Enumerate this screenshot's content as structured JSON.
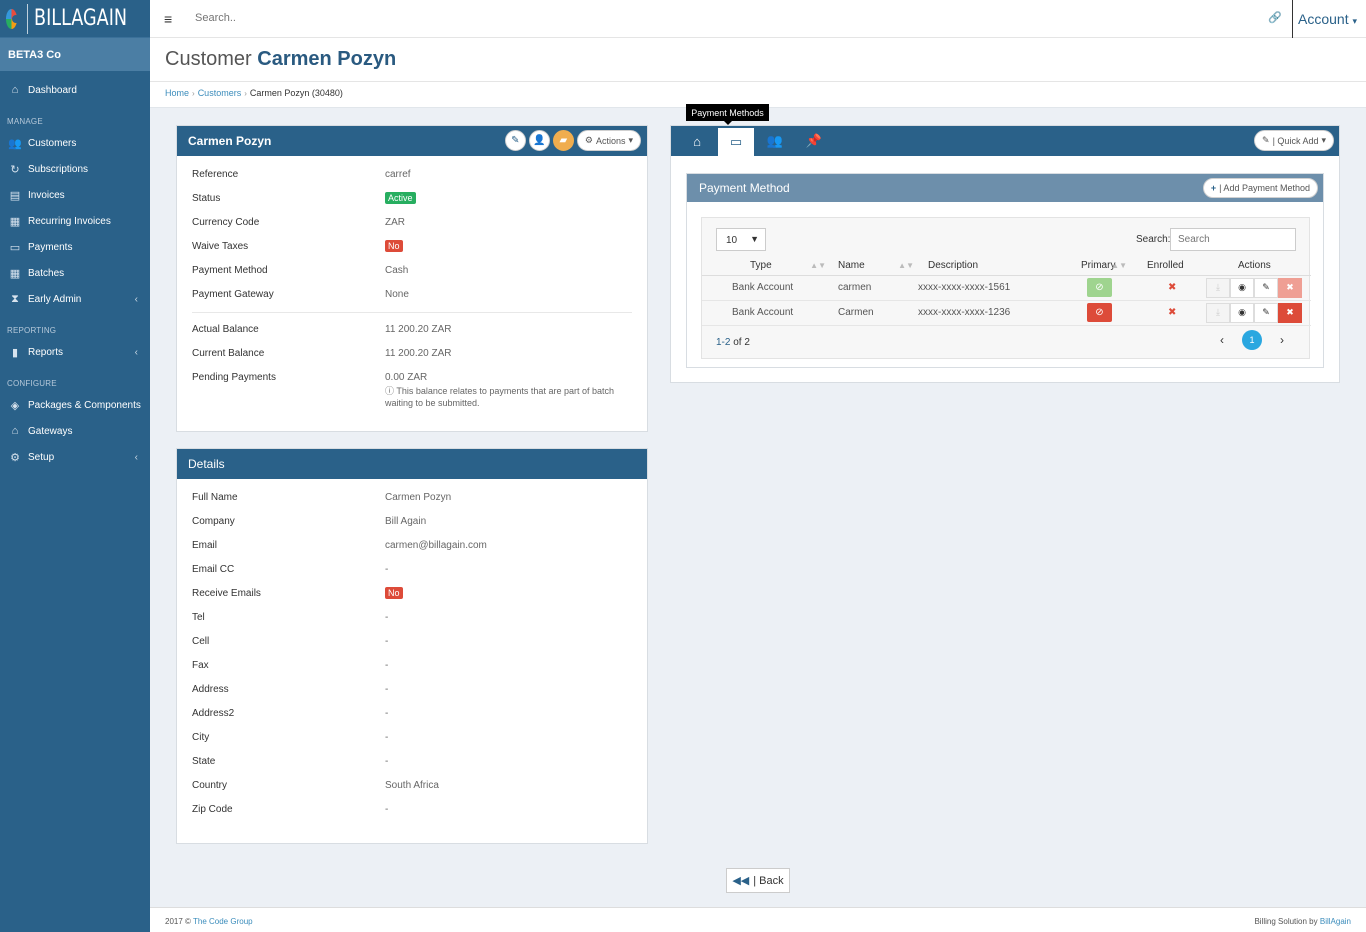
{
  "brand": {
    "name": "BILLAGAIN"
  },
  "company": "BETA3 Co",
  "nav": {
    "dashboard": "Dashboard",
    "manage_heading": "MANAGE",
    "manage": [
      "Customers",
      "Subscriptions",
      "Invoices",
      "Recurring Invoices",
      "Payments",
      "Batches",
      "Early Admin"
    ],
    "reporting_heading": "REPORTING",
    "reports": "Reports",
    "configure_heading": "CONFIGURE",
    "configure": [
      "Packages & Components",
      "Gateways",
      "Setup"
    ]
  },
  "topbar": {
    "search_placeholder": "Search..",
    "account_label": "Account"
  },
  "page": {
    "title_prefix": "Customer",
    "title_name": "Carmen Pozyn"
  },
  "breadcrumb": {
    "home": "Home",
    "customers": "Customers",
    "current": "Carmen Pozyn (30480)"
  },
  "summary": {
    "title": "Carmen Pozyn",
    "actions_label": "Actions",
    "reference_label": "Reference",
    "reference": "carref",
    "status_label": "Status",
    "status": "Active",
    "currency_label": "Currency Code",
    "currency": "ZAR",
    "waive_label": "Waive Taxes",
    "waive": "No",
    "method_label": "Payment Method",
    "method": "Cash",
    "gateway_label": "Payment Gateway",
    "gateway": "None",
    "actual_label": "Actual Balance",
    "actual": "11 200.20 ZAR",
    "current_label": "Current Balance",
    "current": "11 200.20 ZAR",
    "pending_label": "Pending Payments",
    "pending": "0.00 ZAR",
    "pending_note": "This balance relates to payments that are part of batch waiting to be submitted."
  },
  "details": {
    "title": "Details",
    "rows": [
      {
        "label": "Full Name",
        "value": "Carmen Pozyn"
      },
      {
        "label": "Company",
        "value": "Bill Again"
      },
      {
        "label": "Email",
        "value": "carmen@billagain.com"
      },
      {
        "label": "Email CC",
        "value": "-"
      },
      {
        "label": "Receive Emails",
        "value": "No"
      },
      {
        "label": "Tel",
        "value": "-"
      },
      {
        "label": "Cell",
        "value": "-"
      },
      {
        "label": "Fax",
        "value": "-"
      },
      {
        "label": "Address",
        "value": "-"
      },
      {
        "label": "Address2",
        "value": "-"
      },
      {
        "label": "City",
        "value": "-"
      },
      {
        "label": "State",
        "value": "-"
      },
      {
        "label": "Country",
        "value": "South Africa"
      },
      {
        "label": "Zip Code",
        "value": "-"
      }
    ]
  },
  "tabs": {
    "tooltip": "Payment Methods",
    "quick_add": "| Quick Add"
  },
  "payment_methods": {
    "title": "Payment Method",
    "add_label": "| Add Payment Method",
    "page_size": "10",
    "search_label": "Search:",
    "search_placeholder": "Search",
    "columns": [
      "Type",
      "Name",
      "Description",
      "Primary",
      "Enrolled",
      "Actions"
    ],
    "rows": [
      {
        "type": "Bank Account",
        "name": "carmen",
        "description": "xxxx-xxxx-xxxx-1561",
        "primary": true
      },
      {
        "type": "Bank Account",
        "name": "Carmen",
        "description": "xxxx-xxxx-xxxx-1236",
        "primary": false
      }
    ],
    "info_range": "1-2",
    "info_of": "of 2",
    "current_page": "1"
  },
  "back_label": "| Back",
  "footer": {
    "year": "2017 ©",
    "org": "The Code Group",
    "right_text": "Billing Solution by",
    "right_link": "BillAgain"
  }
}
